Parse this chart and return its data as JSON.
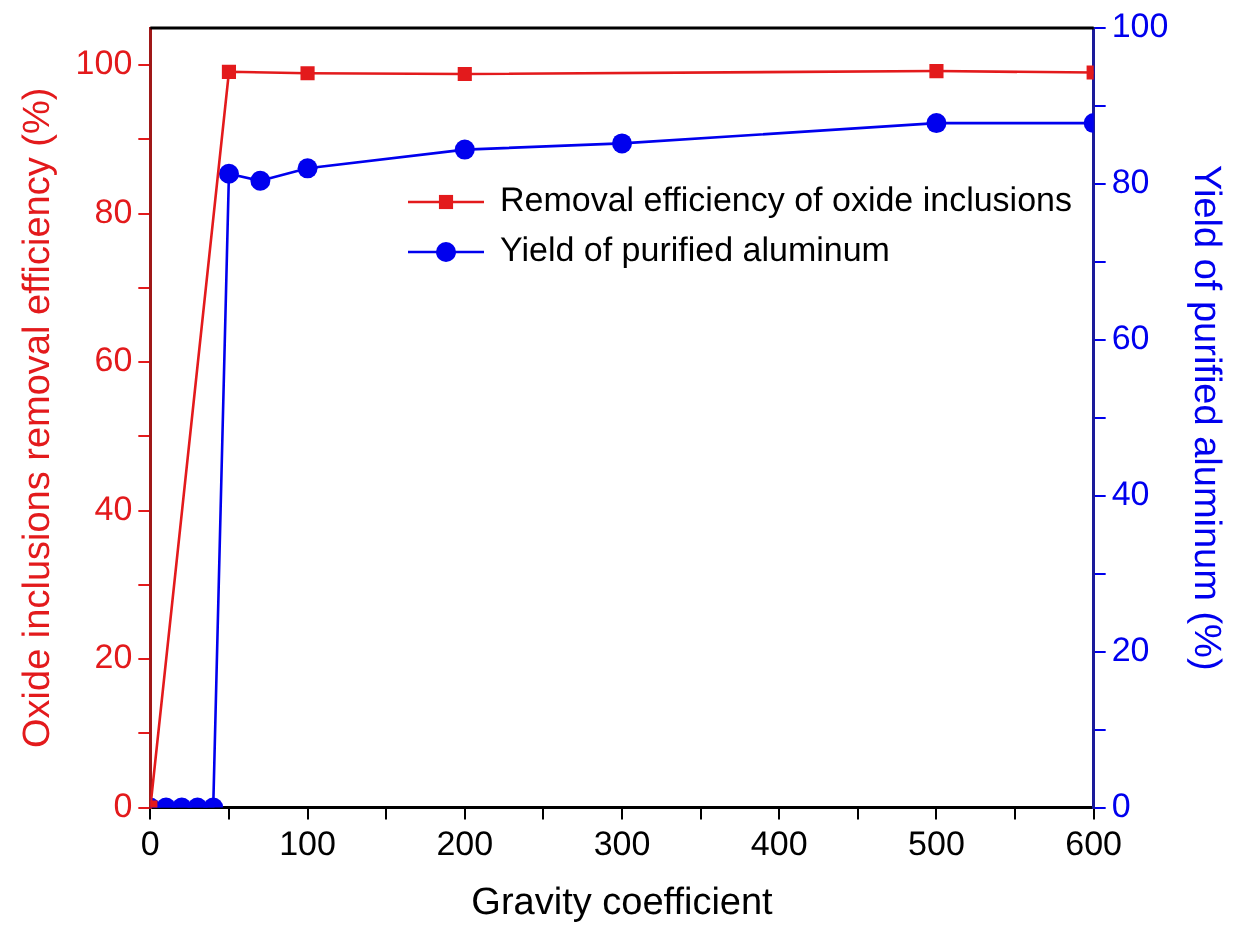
{
  "chart_data": {
    "type": "line",
    "xlabel": "Gravity coefficient",
    "ylabel": "Oxide inclusions removal efficiency (%)",
    "y2label": "Yield of purified aluminum (%)",
    "xlim": [
      0,
      600
    ],
    "xticks": [
      0,
      {
        "value": 50,
        "label": null
      },
      100,
      {
        "value": 150,
        "label": null
      },
      200,
      {
        "value": 250,
        "label": null
      },
      300,
      {
        "value": 350,
        "label": null
      },
      400,
      {
        "value": 450,
        "label": null
      },
      500,
      {
        "value": 550,
        "label": null
      },
      600
    ],
    "ylim": [
      0,
      105
    ],
    "yticks": [
      0,
      {
        "value": 10,
        "label": null
      },
      20,
      {
        "value": 30,
        "label": null
      },
      40,
      {
        "value": 50,
        "label": null
      },
      60,
      {
        "value": 70,
        "label": null
      },
      80,
      {
        "value": 90,
        "label": null
      },
      100
    ],
    "y2lim": [
      0,
      100
    ],
    "y2ticks": [
      0,
      {
        "value": 10,
        "label": null
      },
      20,
      {
        "value": 30,
        "label": null
      },
      40,
      {
        "value": 50,
        "label": null
      },
      60,
      {
        "value": 70,
        "label": null
      },
      80,
      {
        "value": 90,
        "label": null
      },
      100
    ],
    "series": [
      {
        "name": "Removal efficiency of oxide inclusions",
        "color": "#e31a1c",
        "marker": "square",
        "x": [
          0,
          50,
          100,
          200,
          500,
          600
        ],
        "values": [
          0,
          99.1,
          98.9,
          98.8,
          99.2,
          99.0
        ]
      },
      {
        "name": "Yield of purified aluminum",
        "color": "#0000ee",
        "marker": "circle",
        "axis": "y2",
        "x": [
          0,
          10,
          20,
          30,
          40,
          50,
          70,
          100,
          200,
          300,
          500,
          600
        ],
        "values": [
          0,
          0,
          0,
          0,
          0,
          81.3,
          80.4,
          82.0,
          84.4,
          85.2,
          87.8,
          87.8
        ]
      }
    ],
    "legend": "top",
    "grid": false,
    "line_style": "solid"
  }
}
